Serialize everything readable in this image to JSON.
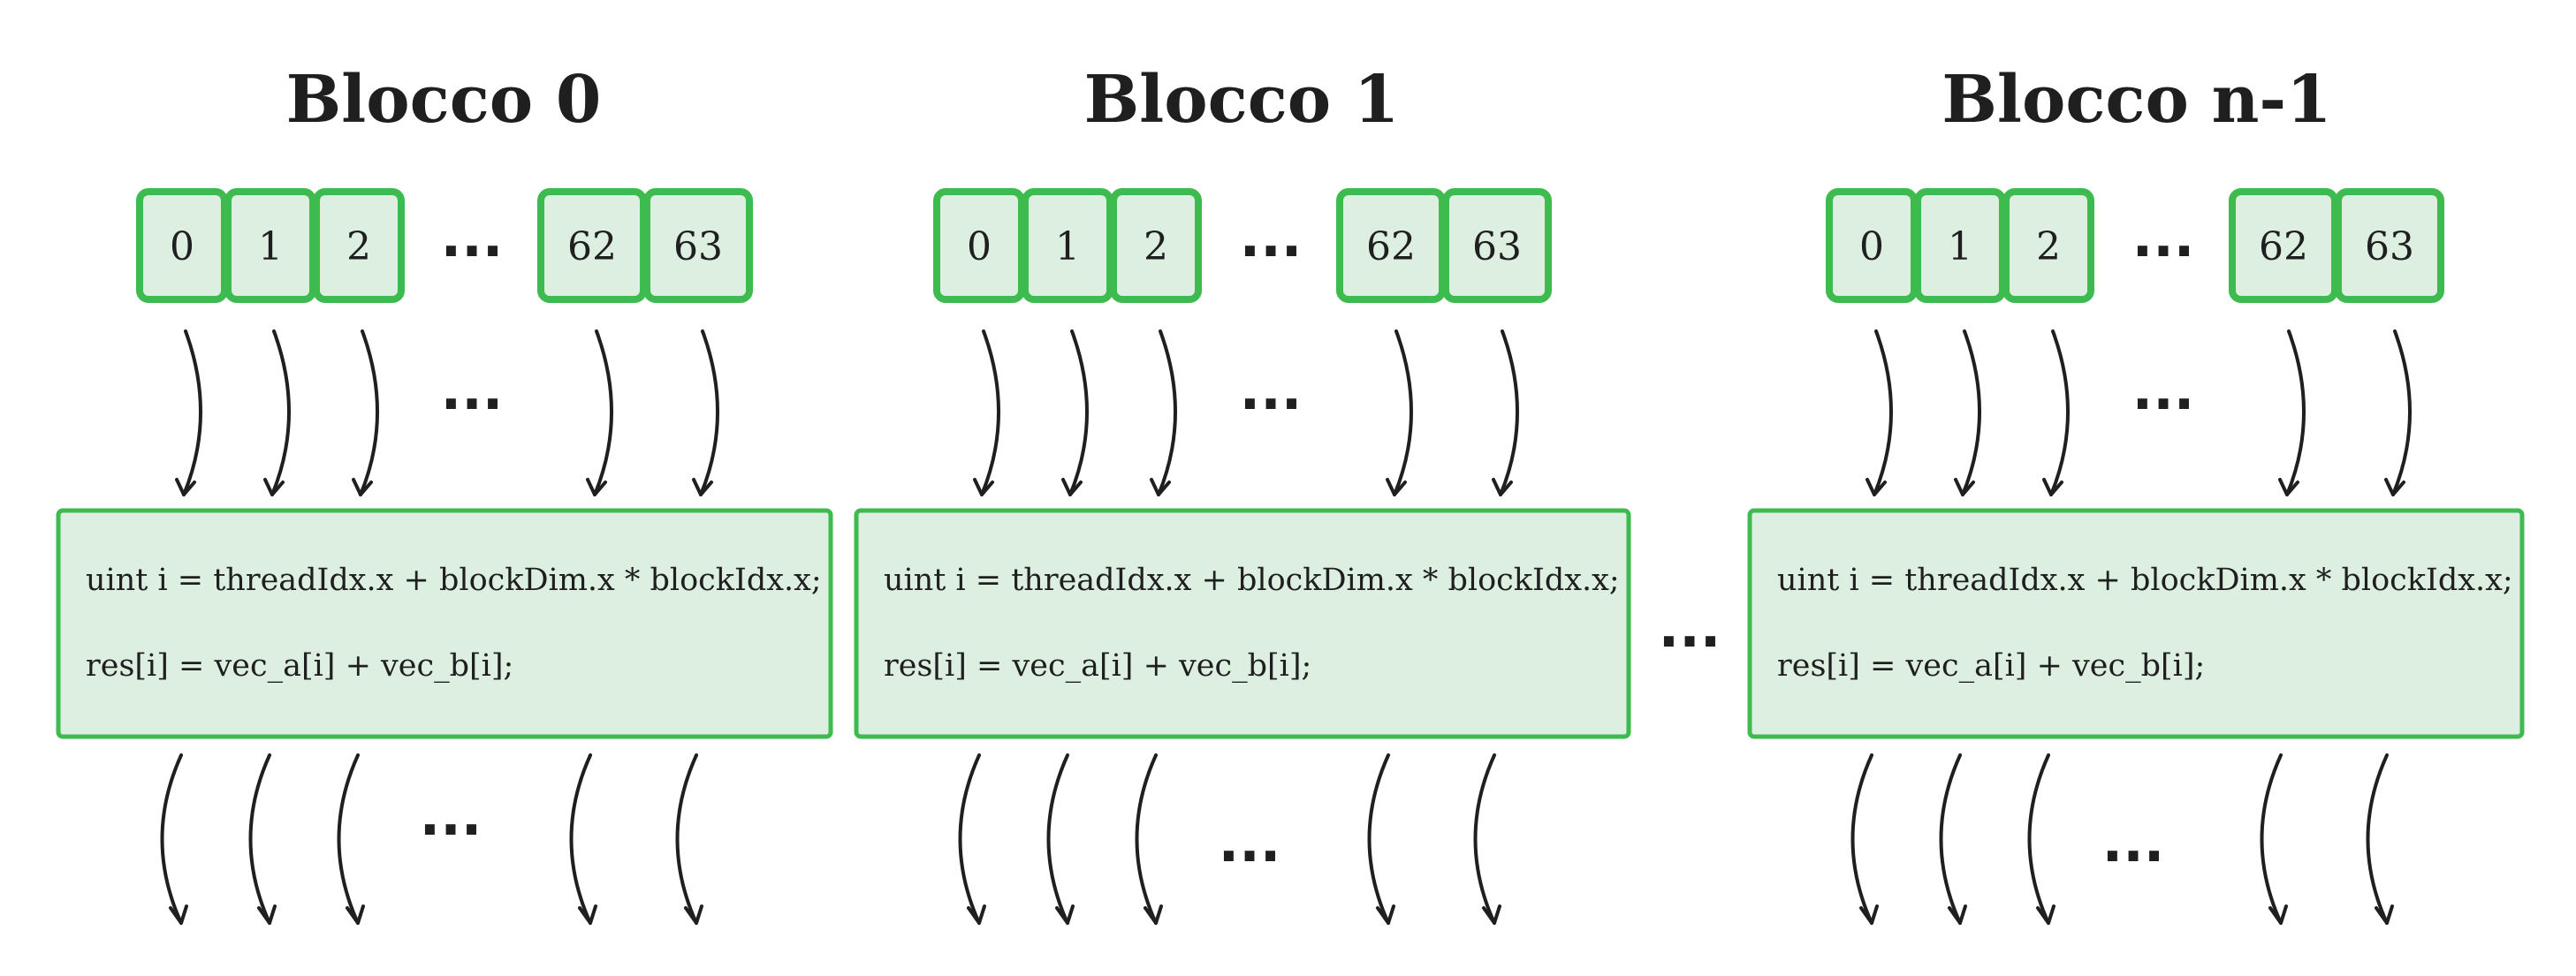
{
  "ellipsis": "...",
  "colors": {
    "cell_fill": "#dcefe0",
    "cell_border": "#3dbb4f",
    "text": "#1f1f1f",
    "background": "#ffffff"
  },
  "blocks": [
    {
      "title": "Blocco 0",
      "thread_labels": [
        "0",
        "1",
        "2",
        "62",
        "63"
      ],
      "code": [
        "uint i = threadIdx.x + blockDim.x * blockIdx.x;",
        "res[i] = vec_a[i] + vec_b[i];"
      ]
    },
    {
      "title": "Blocco 1",
      "thread_labels": [
        "0",
        "1",
        "2",
        "62",
        "63"
      ],
      "code": [
        "uint i = threadIdx.x + blockDim.x * blockIdx.x;",
        "res[i] = vec_a[i] + vec_b[i];"
      ]
    },
    {
      "title": "Blocco n-1",
      "thread_labels": [
        "0",
        "1",
        "2",
        "62",
        "63"
      ],
      "code": [
        "uint i = threadIdx.x + blockDim.x * blockIdx.x;",
        "res[i] = vec_a[i] + vec_b[i];"
      ]
    }
  ]
}
